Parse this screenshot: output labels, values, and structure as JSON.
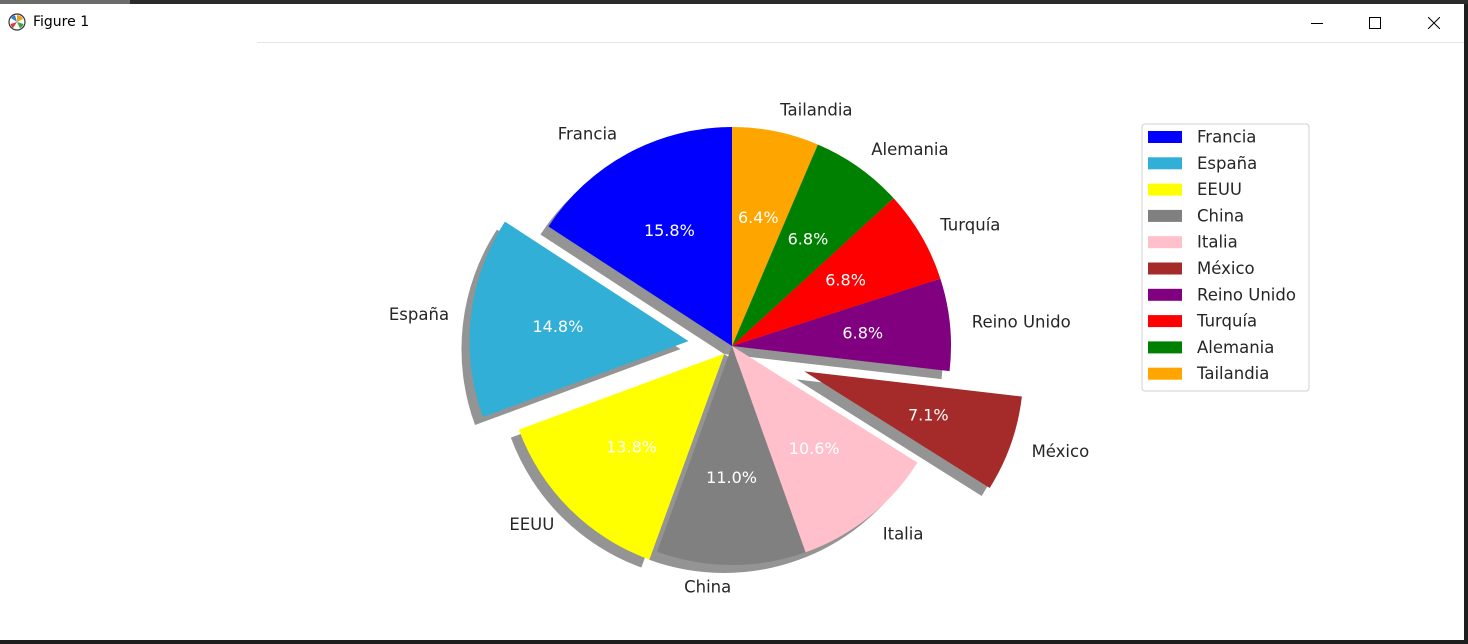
{
  "window": {
    "title": "Figure 1"
  },
  "chart_data": {
    "type": "pie",
    "categories": [
      "Francia",
      "España",
      "EEUU",
      "China",
      "Italia",
      "México",
      "Reino Unido",
      "Turquía",
      "Alemania",
      "Tailandia"
    ],
    "values": [
      15.8,
      14.8,
      13.8,
      11.0,
      10.6,
      7.1,
      6.8,
      6.8,
      6.8,
      6.4
    ],
    "labels_pct": [
      "15.8%",
      "14.8%",
      "13.8%",
      "11.0%",
      "10.6%",
      "7.1%",
      "6.8%",
      "6.8%",
      "6.8%",
      "6.4%"
    ],
    "colors": [
      "#0000ff",
      "#31afd6",
      "#ffff00",
      "#808080",
      "#ffc0cb",
      "#a52a2a",
      "#800080",
      "#ff0000",
      "#008000",
      "#ffa500"
    ],
    "explode": [
      0,
      0.2,
      0.05,
      0,
      0,
      0.35,
      0,
      0,
      0,
      0
    ],
    "shadow": true,
    "start_angle_deg": 90,
    "direction": "counterclockwise",
    "legend": {
      "placement": "top-right",
      "entries": [
        "Francia",
        "España",
        "EEUU",
        "China",
        "Italia",
        "México",
        "Reino Unido",
        "Turquía",
        "Alemania",
        "Tailandia"
      ]
    }
  }
}
